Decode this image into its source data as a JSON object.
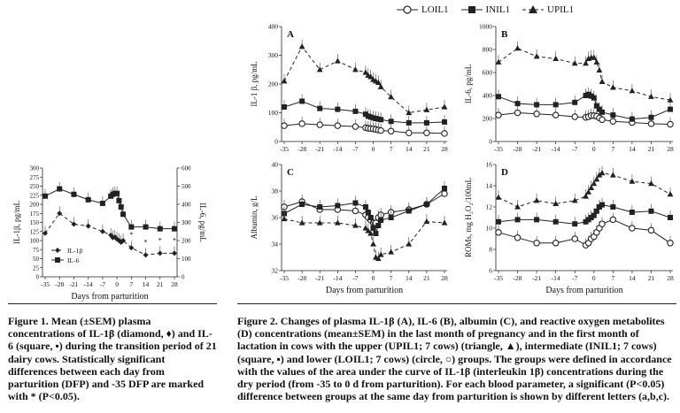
{
  "legend": [
    {
      "label": "LOIL1",
      "marker": "circle-open",
      "dash": "0"
    },
    {
      "label": "INIL1",
      "marker": "square",
      "dash": "0"
    },
    {
      "label": "UPIL1",
      "marker": "triangle",
      "dash": "4,3"
    }
  ],
  "fig1_caption": "Figure 1. Mean (±SEM) plasma concentrations of IL-1β (diamond, ♦) and IL-6 (square, ▪) during the transition period of 21 dairy cows. Statistically significant differences between each day from parturition (DFP) and -35 DFP are marked with * (P<0.05).",
  "fig2_caption": "Figure 2. Changes of plasma IL-1β (A), IL-6 (B), albumin (C), and reactive oxygen metabolites (D) concentrations (mean±SEM) in the last month of pregnancy and in the first month of lactation in cows with the upper (UPIL1; 7 cows) (triangle, ▲), intermediate (INIL1; 7 cows) (square, ▪) and lower (LOIL1; 7 cows) (circle, ○) groups. The groups were defined in accordance with the values of the area under the curve of IL-1β (interleukin 1β) concentrations during the dry period (from -35 to 0 d from parturition). For each blood parameter, a significant (P<0.05) difference between groups at the same day from parturition is shown by different letters (a,b,c).",
  "chart_data": [
    {
      "type": "line",
      "panel": "Figure 1",
      "xlabel": "Days from parturition",
      "ylabel": "IL-1β, pg/mL",
      "y2label": "IL-6, pg/mL",
      "xticks": [
        -35,
        -28,
        -21,
        -14,
        -7,
        0,
        7,
        14,
        21,
        28
      ],
      "x": [
        -35,
        -28,
        -21,
        -14,
        -7,
        -3,
        -2,
        -1,
        0,
        1,
        2,
        3,
        7,
        14,
        21,
        28
      ],
      "ylim": [
        0,
        300
      ],
      "yticks": [
        0,
        25,
        50,
        75,
        100,
        125,
        150,
        175,
        200,
        225,
        250,
        275,
        300
      ],
      "y2lim": [
        0,
        600
      ],
      "y2ticks": [
        0,
        100,
        200,
        300,
        400,
        500,
        600
      ],
      "series": [
        {
          "name": "IL-1β",
          "axis": "left",
          "marker": "diamond",
          "values": [
            120,
            175,
            145,
            140,
            125,
            115,
            108,
            110,
            104,
            100,
            95,
            100,
            80,
            60,
            65,
            65
          ]
        },
        {
          "name": "IL-6",
          "axis": "right",
          "marker": "square",
          "values": [
            445,
            485,
            455,
            425,
            405,
            445,
            455,
            460,
            460,
            420,
            385,
            345,
            275,
            275,
            265,
            265
          ]
        }
      ],
      "significance": "*"
    },
    {
      "type": "line",
      "panel": "A",
      "ylabel": "IL-1 β, pg/mL",
      "xlabel": "",
      "xticks": [
        -35,
        -28,
        -21,
        -14,
        -7,
        0,
        7,
        14,
        21,
        28
      ],
      "x": [
        -35,
        -28,
        -21,
        -14,
        -7,
        -3,
        -2,
        -1,
        0,
        1,
        2,
        3,
        7,
        14,
        21,
        28
      ],
      "ylim": [
        0,
        400
      ],
      "yticks": [
        0,
        100,
        200,
        300,
        400
      ],
      "series": [
        {
          "name": "LOIL1",
          "values": [
            55,
            62,
            58,
            55,
            52,
            48,
            46,
            45,
            44,
            42,
            40,
            38,
            36,
            30,
            30,
            28
          ]
        },
        {
          "name": "INIL1",
          "values": [
            120,
            140,
            115,
            112,
            105,
            95,
            88,
            85,
            82,
            80,
            78,
            76,
            70,
            65,
            65,
            68
          ]
        },
        {
          "name": "UPIL1",
          "values": [
            210,
            330,
            250,
            280,
            250,
            240,
            230,
            225,
            215,
            210,
            205,
            190,
            155,
            100,
            110,
            120
          ]
        }
      ]
    },
    {
      "type": "line",
      "panel": "B",
      "ylabel": "IL-6, pg/mL",
      "xlabel": "",
      "xticks": [
        -35,
        -28,
        -21,
        -14,
        -7,
        0,
        7,
        14,
        21,
        28
      ],
      "x": [
        -35,
        -28,
        -21,
        -14,
        -7,
        -3,
        -2,
        -1,
        0,
        1,
        2,
        3,
        7,
        14,
        21,
        28
      ],
      "ylim": [
        0,
        1000
      ],
      "yticks": [
        0,
        200,
        400,
        600,
        800,
        1000
      ],
      "series": [
        {
          "name": "LOIL1",
          "values": [
            230,
            250,
            240,
            230,
            215,
            210,
            215,
            225,
            225,
            220,
            205,
            190,
            175,
            165,
            155,
            150
          ]
        },
        {
          "name": "INIL1",
          "values": [
            390,
            330,
            320,
            320,
            340,
            400,
            410,
            395,
            380,
            310,
            280,
            255,
            230,
            195,
            210,
            280
          ]
        },
        {
          "name": "UPIL1",
          "values": [
            690,
            810,
            740,
            720,
            680,
            680,
            720,
            730,
            730,
            690,
            620,
            520,
            470,
            440,
            390,
            360
          ]
        }
      ]
    },
    {
      "type": "line",
      "panel": "C",
      "ylabel": "Albumin, g/L",
      "xlabel": "Days from parturition",
      "xticks": [
        -35,
        -28,
        -21,
        -14,
        -7,
        0,
        7,
        14,
        21,
        28
      ],
      "x": [
        -35,
        -28,
        -21,
        -14,
        -7,
        -3,
        -2,
        -1,
        0,
        1,
        2,
        3,
        7,
        14,
        21,
        28
      ],
      "ylim": [
        32,
        40
      ],
      "yticks": [
        32,
        34,
        36,
        38,
        40
      ],
      "series": [
        {
          "name": "LOIL1",
          "values": [
            36.8,
            37.2,
            36.6,
            36.6,
            36.5,
            36.2,
            36.0,
            35.8,
            35.6,
            35.6,
            36.0,
            36.2,
            36.4,
            36.6,
            37.0,
            37.8
          ]
        },
        {
          "name": "INIL1",
          "values": [
            36.3,
            37.0,
            36.8,
            36.9,
            37.1,
            36.8,
            36.4,
            36.0,
            35.2,
            34.8,
            35.4,
            35.8,
            36.0,
            36.5,
            37.0,
            38.2
          ]
        },
        {
          "name": "UPIL1",
          "values": [
            35.9,
            35.6,
            35.6,
            35.6,
            35.4,
            35.2,
            35.0,
            34.8,
            34.0,
            33.0,
            32.9,
            33.2,
            33.4,
            34.0,
            35.7,
            35.6
          ]
        }
      ]
    },
    {
      "type": "line",
      "panel": "D",
      "ylabel": "ROMs, mg H₂O₂/100mL",
      "xlabel": "Days from parturition",
      "xticks": [
        -35,
        -28,
        -21,
        -14,
        -7,
        0,
        7,
        14,
        21,
        28
      ],
      "x": [
        -35,
        -28,
        -21,
        -14,
        -7,
        -3,
        -2,
        -1,
        0,
        1,
        2,
        3,
        7,
        14,
        21,
        28
      ],
      "ylim": [
        6,
        16
      ],
      "yticks": [
        6,
        8,
        10,
        12,
        14,
        16
      ],
      "series": [
        {
          "name": "LOIL1",
          "values": [
            9.6,
            9.1,
            8.6,
            8.6,
            9.0,
            8.4,
            8.6,
            9.0,
            9.2,
            9.6,
            10.0,
            10.4,
            10.8,
            10.0,
            9.8,
            8.6
          ]
        },
        {
          "name": "INIL1",
          "values": [
            10.6,
            10.8,
            10.8,
            10.6,
            10.4,
            10.6,
            10.8,
            11.0,
            11.2,
            11.6,
            12.0,
            12.2,
            12.0,
            11.5,
            11.6,
            11.0
          ]
        },
        {
          "name": "UPIL1",
          "values": [
            12.9,
            12.0,
            12.6,
            12.3,
            12.6,
            13.0,
            13.4,
            13.8,
            14.2,
            14.6,
            15.0,
            15.2,
            15.0,
            14.4,
            14.2,
            13.2
          ]
        }
      ]
    }
  ]
}
